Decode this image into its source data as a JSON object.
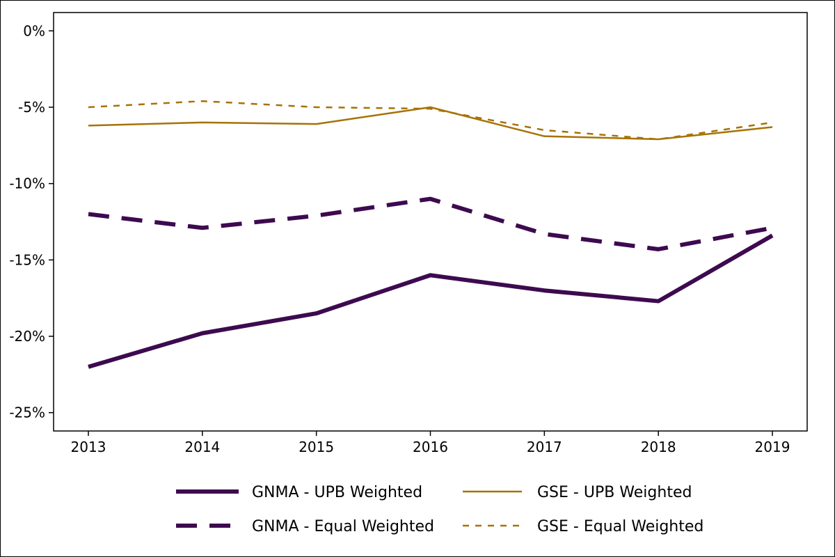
{
  "chart_data": {
    "type": "line",
    "title": "",
    "xlabel": "",
    "ylabel": "",
    "x": [
      "2013",
      "2014",
      "2015",
      "2016",
      "2017",
      "2018",
      "2019"
    ],
    "ylim": [
      -26.2,
      1.2
    ],
    "y_ticks": [
      0,
      -5,
      -10,
      -15,
      -20,
      -25
    ],
    "y_tick_labels": [
      "0%",
      "-5%",
      "-10%",
      "-15%",
      "-20%",
      "-25%"
    ],
    "grid": false,
    "legend_position": "bottom",
    "series": [
      {
        "name": "GNMA - UPB Weighted",
        "color": "#3d0a4f",
        "style": "solid-thick",
        "values": [
          -22.0,
          -19.8,
          -18.5,
          -16.0,
          -17.0,
          -17.7,
          -13.4
        ]
      },
      {
        "name": "GSE - UPB Weighted",
        "color": "#a67205",
        "style": "solid-thin",
        "values": [
          -6.2,
          -6.0,
          -6.1,
          -5.0,
          -6.9,
          -7.1,
          -6.3
        ]
      },
      {
        "name": "GNMA - Equal Weighted",
        "color": "#3d0a4f",
        "style": "dashed-thick",
        "values": [
          -12.0,
          -12.9,
          -12.1,
          -11.0,
          -13.3,
          -14.3,
          -12.9
        ]
      },
      {
        "name": "GSE - Equal Weighted",
        "color": "#a67205",
        "style": "dashed-thin",
        "values": [
          -5.0,
          -4.6,
          -5.0,
          -5.1,
          -6.5,
          -7.1,
          -6.0
        ]
      }
    ]
  }
}
